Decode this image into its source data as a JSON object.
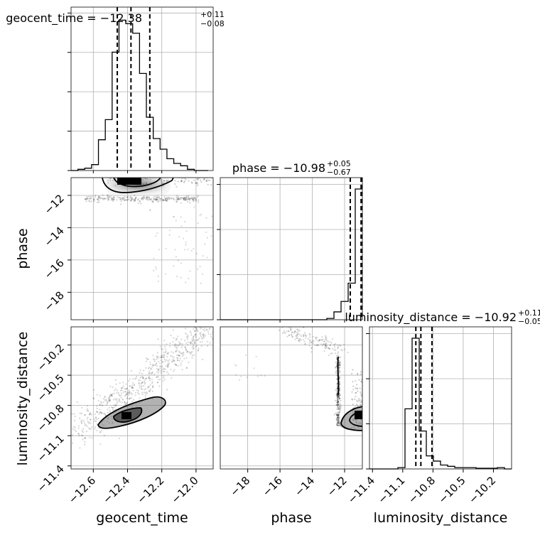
{
  "chart_data": {
    "type": "corner",
    "parameters": [
      "geocent_time",
      "phase",
      "luminosity_distance"
    ],
    "titles": [
      {
        "param": "geocent_time",
        "prefix": "geocent_time = −12.38",
        "plus": "+0.11",
        "minus": "−0.08"
      },
      {
        "param": "phase",
        "prefix": "phase = −10.98",
        "plus": "+0.05",
        "minus": "−0.67"
      },
      {
        "param": "luminosity_distance",
        "prefix": "luminosity_distance = −10.92",
        "plus": "+0.11",
        "minus": "−0.05"
      }
    ],
    "axes": {
      "geocent_time": {
        "label": "geocent_time",
        "range": [
          -12.73,
          -11.9
        ],
        "ticks": [
          -12.6,
          -12.4,
          -12.2,
          -12.0
        ],
        "tick_labels": [
          "−12.6",
          "−12.4",
          "−12.2",
          "−12.0"
        ]
      },
      "phase": {
        "label": "phase",
        "range": [
          -19.7,
          -10.9
        ],
        "ticks": [
          -18,
          -16,
          -14,
          -12
        ],
        "tick_labels": [
          "−18",
          "−16",
          "−14",
          "−12"
        ]
      },
      "luminosity_distance": {
        "label": "luminosity_distance",
        "range": [
          -11.43,
          -10.02
        ],
        "ticks": [
          -11.4,
          -11.1,
          -10.8,
          -10.5,
          -10.2
        ],
        "tick_labels": [
          "−11.4",
          "−11.1",
          "−10.8",
          "−10.5",
          "−10.2"
        ]
      }
    },
    "histograms": {
      "geocent_time": {
        "edges": [
          -12.73,
          -12.69,
          -12.65,
          -12.61,
          -12.57,
          -12.53,
          -12.49,
          -12.45,
          -12.41,
          -12.37,
          -12.33,
          -12.29,
          -12.25,
          -12.21,
          -12.17,
          -12.13,
          -12.09,
          -12.05,
          -12.01,
          -11.97,
          -11.93
        ],
        "counts": [
          0,
          1,
          2,
          5,
          26,
          43,
          100,
          127,
          124,
          116,
          82,
          45,
          27,
          18,
          10,
          6,
          4,
          1,
          0,
          0
        ],
        "quantiles": [
          -12.46,
          -12.38,
          -12.27
        ]
      },
      "phase": {
        "edges": [
          -19.7,
          -19.26,
          -18.82,
          -18.38,
          -17.94,
          -17.5,
          -17.06,
          -16.62,
          -16.18,
          -15.74,
          -15.3,
          -14.86,
          -14.42,
          -13.98,
          -13.54,
          -13.1,
          -12.66,
          -12.22,
          -11.78,
          -11.34,
          -10.9
        ],
        "counts": [
          0,
          0,
          0,
          0,
          0,
          0,
          0,
          0,
          0,
          0,
          0,
          0,
          0,
          0,
          0,
          1,
          6,
          14,
          28,
          100
        ],
        "quantiles": [
          -11.65,
          -10.98,
          -10.93
        ]
      },
      "luminosity_distance": {
        "edges": [
          -11.43,
          -11.3595,
          -11.289,
          -11.2185,
          -11.148,
          -11.0775,
          -11.007,
          -10.9365,
          -10.866,
          -10.7955,
          -10.725,
          -10.6545,
          -10.584,
          -10.5135,
          -10.443,
          -10.3725,
          -10.302,
          -10.2315,
          -10.161,
          -10.0905,
          -10.02
        ],
        "counts": [
          0,
          0,
          0,
          0,
          1,
          46,
          100,
          29,
          10,
          6,
          3,
          2,
          1,
          1,
          1,
          0.5,
          0.5,
          0.5,
          1,
          0
        ],
        "quantiles": [
          -10.97,
          -10.92,
          -10.81
        ]
      }
    },
    "density_peak": {
      "phase_vs_geocent_time": {
        "x": -12.38,
        "y": -10.98
      },
      "luminosity_distance_vs_geocent_time": {
        "x": -12.38,
        "y": -10.92
      },
      "luminosity_distance_vs_phase": {
        "x": -10.95,
        "y": -10.92
      }
    },
    "grid": true
  }
}
